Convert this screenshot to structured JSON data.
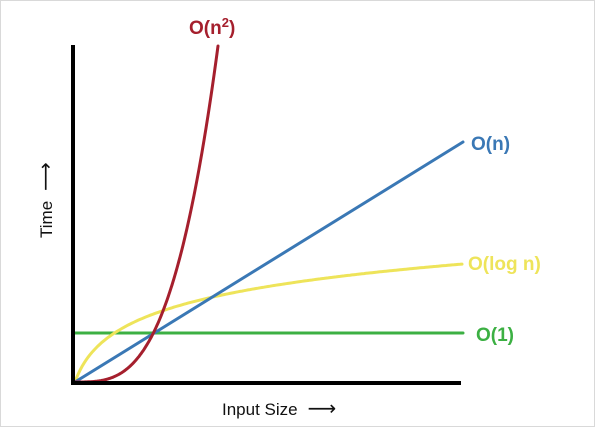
{
  "chart_data": {
    "type": "line",
    "title": "",
    "xlabel": "Input Size",
    "ylabel": "Time",
    "x_arrow": "⟶",
    "y_arrow": "⟶",
    "grid": false,
    "legend": "none",
    "series": [
      {
        "name": "O(1)",
        "label_text": "O(1)",
        "color": "#3cb043",
        "width": 3
      },
      {
        "name": "O(log n)",
        "label_text": "O(log n)",
        "color": "#eee45a",
        "width": 3
      },
      {
        "name": "O(n)",
        "label_text": "O(n)",
        "color": "#3a78b5",
        "width": 3
      },
      {
        "name": "O(n²)",
        "label_text": "O(n",
        "label_sup": "2",
        "label_close": ")",
        "color": "#a51f2d",
        "width": 3
      }
    ],
    "axis_color": "#000000"
  }
}
